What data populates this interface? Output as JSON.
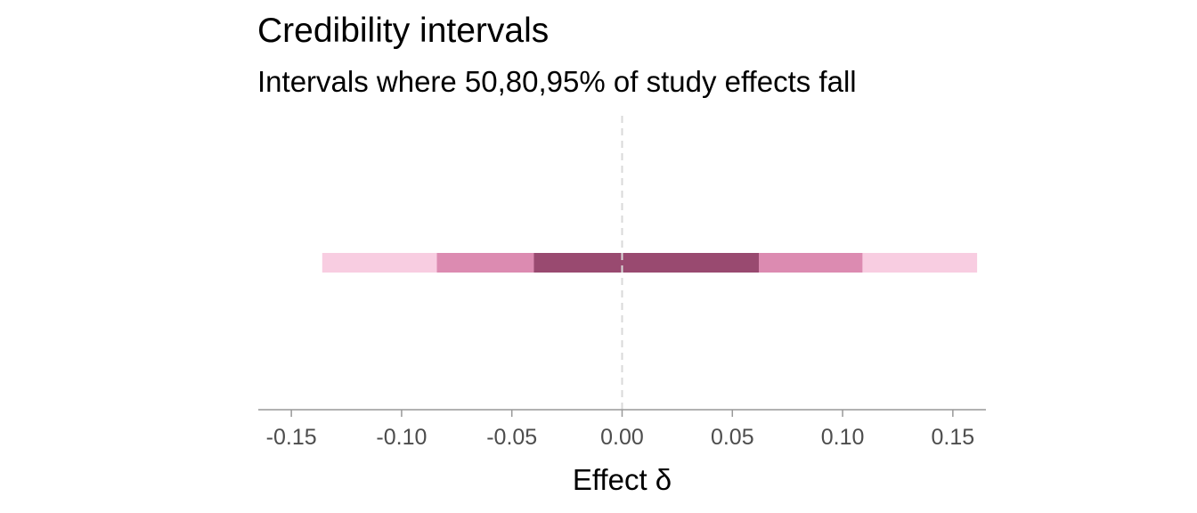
{
  "chart_data": {
    "type": "interval",
    "title": "Credibility intervals",
    "subtitle": "Intervals where 50,80,95% of study effects fall",
    "xlabel": "Effect δ",
    "ylabel": "",
    "xlim": [
      -0.165,
      0.165
    ],
    "x_ticks": [
      -0.15,
      -0.1,
      -0.05,
      0.0,
      0.05,
      0.1,
      0.15
    ],
    "x_tick_labels": [
      "-0.15",
      "-0.10",
      "-0.05",
      "0.00",
      "0.05",
      "0.10",
      "0.15"
    ],
    "reference_line": {
      "x": 0.0,
      "style": "dashed"
    },
    "grid": false,
    "legend": "none",
    "intervals": [
      {
        "level": 0.95,
        "lower": -0.136,
        "upper": 0.161,
        "color": "#f8cde1"
      },
      {
        "level": 0.8,
        "lower": -0.084,
        "upper": 0.109,
        "color": "#dc8bb1"
      },
      {
        "level": 0.5,
        "lower": -0.04,
        "upper": 0.062,
        "color": "#994a70"
      }
    ]
  }
}
